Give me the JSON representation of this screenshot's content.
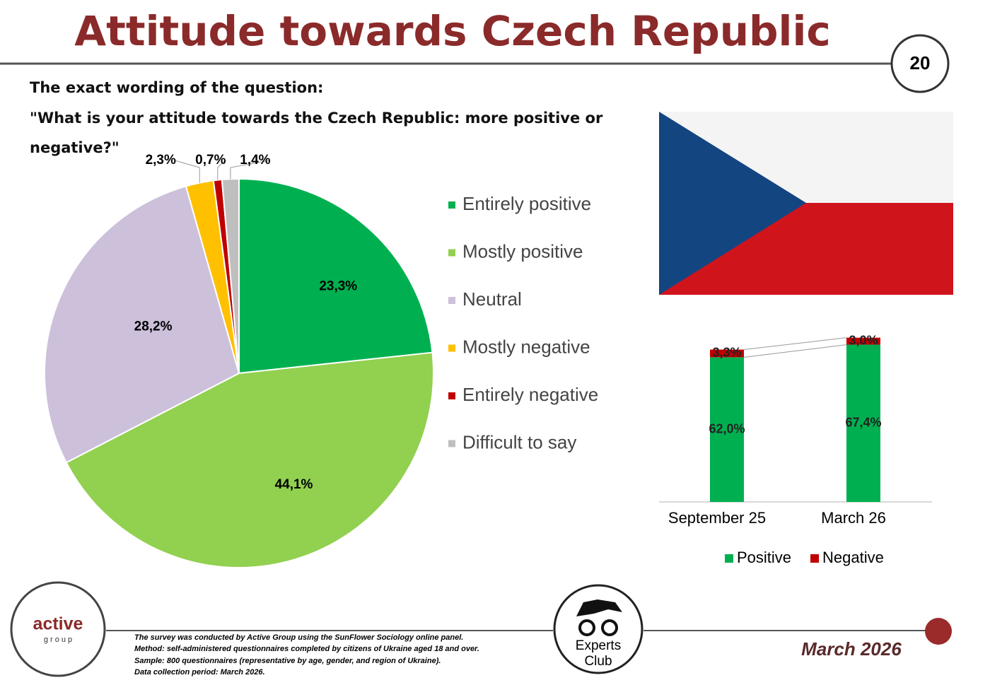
{
  "title": "Attitude towards Czech Republic",
  "page_number": "20",
  "question_label": "The exact wording of the question:",
  "question": "\"What is your attitude towards the Czech Republic: more positive or negative?\"",
  "chart_data": [
    {
      "type": "pie",
      "categories": [
        "Entirely positive",
        "Mostly positive",
        "Neutral",
        "Mostly negative",
        "Entirely negative",
        "Difficult to say"
      ],
      "values": [
        23.3,
        44.1,
        28.2,
        2.3,
        0.7,
        1.4
      ],
      "value_labels": [
        "23,3%",
        "44,1%",
        "28,2%",
        "2,3%",
        "0,7%",
        "1,4%"
      ],
      "colors": [
        "#00b050",
        "#92d050",
        "#ccc0da",
        "#ffc000",
        "#c00000",
        "#bfbfbf"
      ],
      "legend": "right"
    },
    {
      "type": "stacked_bar",
      "categories": [
        "September 25",
        "March 26"
      ],
      "series": [
        {
          "name": "Positive",
          "color": "#00b050",
          "values": [
            62.0,
            67.4
          ],
          "value_labels": [
            "62,0%",
            "67,4%"
          ]
        },
        {
          "name": "Negative",
          "color": "#c00000",
          "values": [
            3.3,
            3.0
          ],
          "value_labels": [
            "3,3%",
            "3,0%"
          ]
        }
      ],
      "legend": "bottom"
    }
  ],
  "logos": {
    "active": "active",
    "group": "g r o u p",
    "experts": "Experts",
    "club": "Club"
  },
  "footer": {
    "notes": [
      "The survey was conducted by Active Group using the SunFlower Sociology online panel.",
      "Method: self-administered questionnaires completed by citizens of Ukraine aged 18 and over.",
      "Sample: 800 questionnaires (representative by age, gender, and region of Ukraine).",
      "Data collection period: March 2026."
    ],
    "date": "March 2026"
  }
}
